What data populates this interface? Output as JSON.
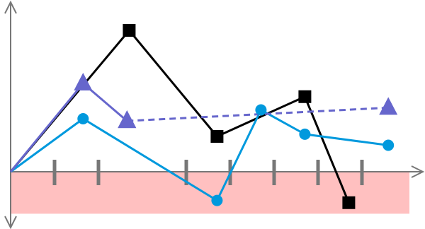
{
  "chart_data": {
    "type": "line",
    "title": "",
    "xlabel": "",
    "ylabel": "",
    "x_ticks": [
      1,
      2,
      4,
      5,
      6,
      7,
      8
    ],
    "xlim": [
      0,
      9.3
    ],
    "ylim": [
      -1,
      3.2
    ],
    "grid": false,
    "legend": "none",
    "negative_band": {
      "from": 0,
      "to": -0.95,
      "color": "#ffc0c0"
    },
    "series": [
      {
        "color": "#000000",
        "marker": "square",
        "dash": "solid",
        "points": [
          [
            0,
            0
          ],
          [
            2.7,
            3.2
          ],
          [
            4.7,
            0.8
          ],
          [
            6.7,
            1.7
          ],
          [
            7.7,
            -0.7
          ]
        ]
      },
      {
        "color": "#0099dd",
        "marker": "circle",
        "dash": "solid",
        "points": [
          [
            0,
            0
          ],
          [
            1.65,
            1.2
          ],
          [
            4.7,
            -0.65
          ],
          [
            5.7,
            1.4
          ],
          [
            6.7,
            0.85
          ],
          [
            8.6,
            0.6
          ]
        ]
      },
      {
        "color": "#6666cc",
        "marker": "triangle",
        "dash": "solid",
        "points": [
          [
            0,
            0
          ],
          [
            1.65,
            2.0
          ],
          [
            2.65,
            1.15
          ]
        ]
      },
      {
        "color": "#6666cc",
        "marker": "triangle",
        "dash": "dashed",
        "points": [
          [
            2.65,
            1.15
          ],
          [
            8.6,
            1.45
          ]
        ]
      }
    ]
  }
}
